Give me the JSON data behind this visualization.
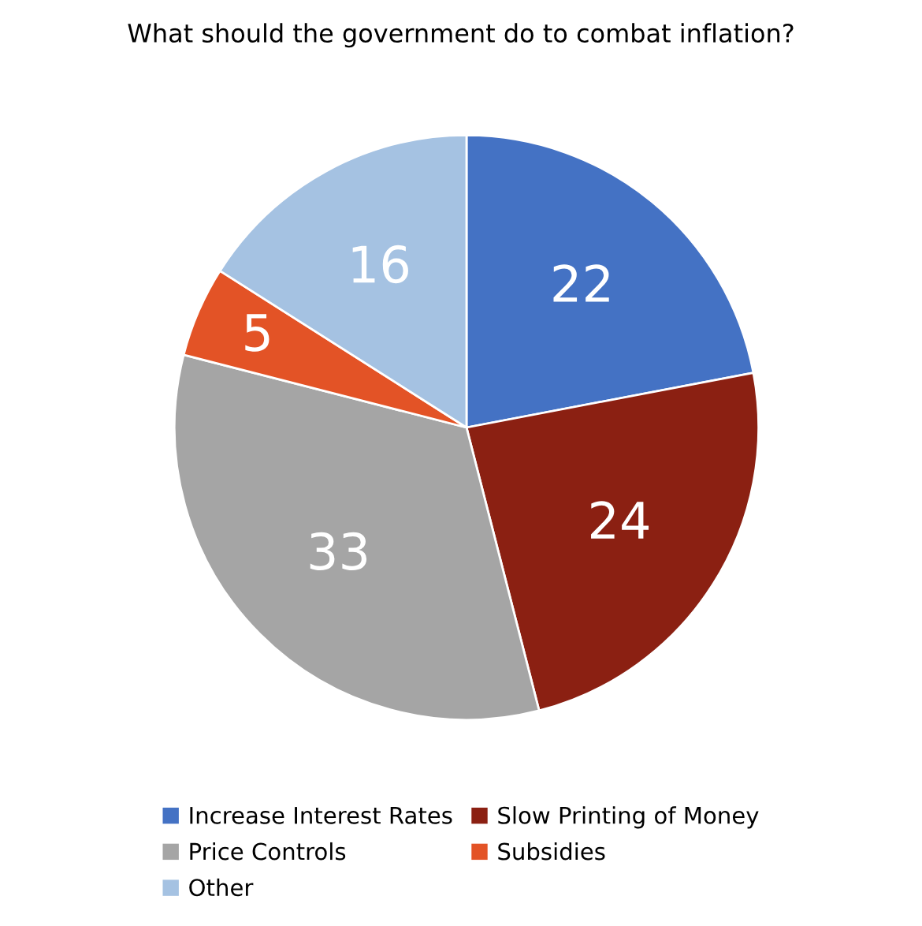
{
  "chart_data": {
    "type": "pie",
    "title": "What should the government do to combat inflation?",
    "categories": [
      "Increase Interest Rates",
      "Slow Printing of Money",
      "Price Controls",
      "Subsidies",
      "Other"
    ],
    "values": [
      22,
      24,
      33,
      5,
      16
    ],
    "colors": [
      "#4472c4",
      "#8b2012",
      "#a5a5a5",
      "#e35326",
      "#a5c2e2"
    ],
    "data_labels": true,
    "legend": "bottom"
  }
}
